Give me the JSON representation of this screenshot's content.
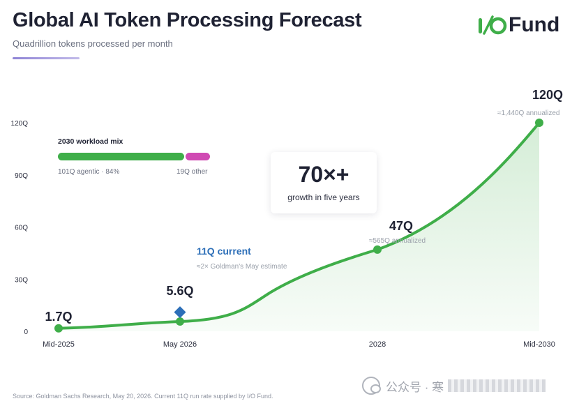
{
  "header": {
    "title": "Global AI Token Processing Forecast",
    "subtitle": "Quadrillion tokens processed per month"
  },
  "logo": {
    "text": "Fund",
    "colors": {
      "mark": "#3fae49",
      "text": "#1f2233"
    }
  },
  "chart_data": {
    "type": "area",
    "x_tick_labels": [
      "Mid-2025",
      "May 2026",
      "2028",
      "Mid-2030"
    ],
    "y_tick_labels": [
      "0",
      "30Q",
      "60Q",
      "90Q",
      "120Q"
    ],
    "ylim": [
      0,
      120
    ],
    "grid": false,
    "series": [
      {
        "points": [
          {
            "x": "Mid-2025",
            "y": 1.7
          },
          {
            "x": "May 2026",
            "y": 5.6
          },
          {
            "x": "2028",
            "y": 47
          },
          {
            "x": "Mid-2030",
            "y": 120
          }
        ],
        "color": "#3fae49"
      }
    ],
    "markers": [
      {
        "x": "Mid-2025",
        "y": 1.7,
        "label": "1.7Q",
        "sublabel": ""
      },
      {
        "x": "May 2026",
        "y": 5.6,
        "label": "5.6Q",
        "sublabel": ""
      },
      {
        "x": "2028",
        "y": 47,
        "label": "47Q",
        "sublabel": "≈565Q annualized"
      },
      {
        "x": "Mid-2030",
        "y": 120,
        "label": "120Q",
        "sublabel": "≈1,440Q annualized"
      }
    ],
    "current_marker": {
      "x": "May 2026",
      "y": 11,
      "label": "11Q current",
      "sublabel": "≈2× Goldman's May estimate",
      "color": "#2d6fb8"
    }
  },
  "mix": {
    "title": "2030 workload mix",
    "agentic_label": "101Q agentic · 84%",
    "other_label": "19Q other",
    "agentic_share": 0.84,
    "colors": {
      "agentic": "#3fae49",
      "other": "#d04ab3"
    }
  },
  "callout": {
    "value": "70×+",
    "label": "growth in five years"
  },
  "source": "Source: Goldman Sachs Research, May 20, 2026. Current 11Q run rate supplied by I/O Fund.",
  "watermark": {
    "text": "公众号 · 寒"
  }
}
